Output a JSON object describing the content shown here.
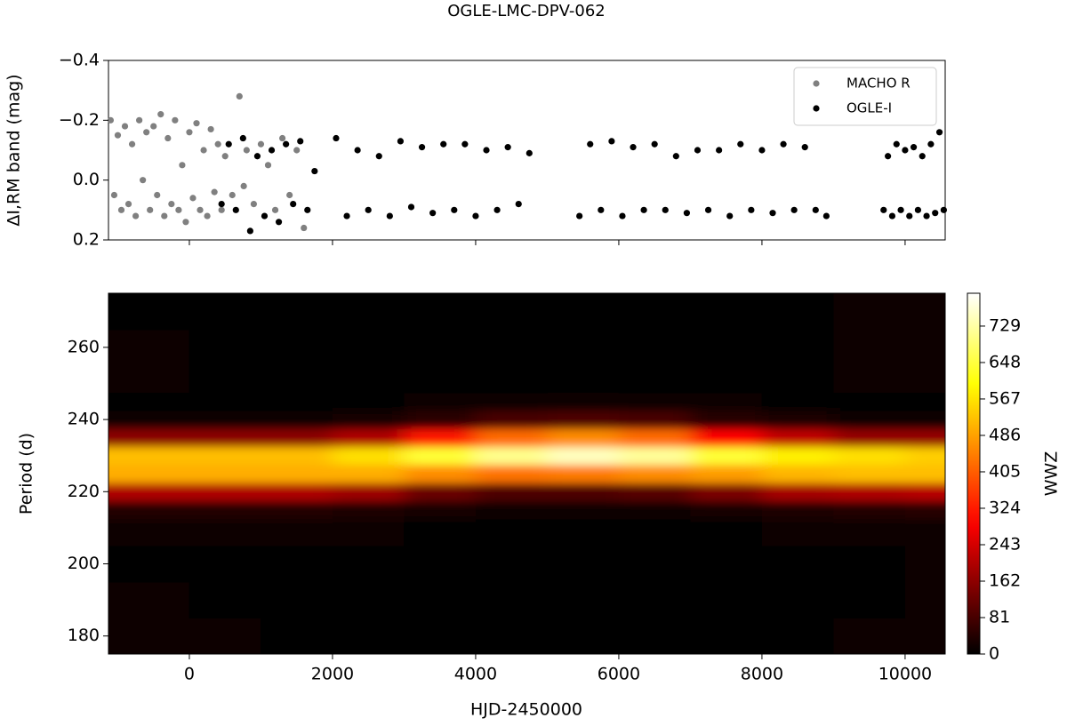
{
  "chart_data": [
    {
      "type": "scatter",
      "title": "OGLE-LMC-DPV-062",
      "ylabel": "ΔI,RM band (mag)",
      "xlim": [
        -1130,
        10560
      ],
      "ylim": [
        0.2,
        -0.4
      ],
      "xticks": [
        0,
        2000,
        4000,
        6000,
        8000,
        10000
      ],
      "yticks": [
        {
          "value": -0.4,
          "label": "−0.4"
        },
        {
          "value": -0.2,
          "label": "−0.2"
        },
        {
          "value": 0.0,
          "label": "0.0"
        },
        0.2
      ],
      "legend": "upper right",
      "series": [
        {
          "name": "MACHO R",
          "color": "#808080",
          "x": [
            -1100,
            -1050,
            -1000,
            -950,
            -900,
            -850,
            -800,
            -750,
            -700,
            -650,
            -600,
            -550,
            -500,
            -450,
            -400,
            -350,
            -300,
            -250,
            -200,
            -150,
            -100,
            -50,
            0,
            50,
            100,
            150,
            200,
            250,
            300,
            350,
            400,
            450,
            500,
            600,
            700,
            760,
            800,
            900,
            1000,
            1100,
            1200,
            1300,
            1400,
            1500,
            1600
          ],
          "values": [
            -0.2,
            0.05,
            -0.15,
            0.1,
            -0.18,
            0.08,
            -0.12,
            0.12,
            -0.2,
            0.0,
            -0.16,
            0.1,
            -0.18,
            0.05,
            -0.22,
            0.12,
            -0.14,
            0.08,
            -0.2,
            0.1,
            -0.05,
            0.14,
            -0.16,
            0.06,
            -0.19,
            0.1,
            -0.1,
            0.12,
            -0.17,
            0.04,
            -0.12,
            0.1,
            -0.08,
            0.05,
            -0.28,
            0.02,
            -0.1,
            0.08,
            -0.12,
            -0.05,
            0.1,
            -0.14,
            0.05,
            -0.1,
            0.16
          ]
        },
        {
          "name": "OGLE-I",
          "color": "#000000",
          "x": [
            450,
            550,
            650,
            750,
            850,
            950,
            1050,
            1150,
            1250,
            1350,
            1450,
            1550,
            1650,
            1750,
            2050,
            2200,
            2350,
            2500,
            2650,
            2800,
            2950,
            3100,
            3250,
            3400,
            3550,
            3700,
            3850,
            4000,
            4150,
            4300,
            4450,
            4600,
            4750,
            5450,
            5600,
            5750,
            5900,
            6050,
            6200,
            6350,
            6500,
            6650,
            6800,
            6950,
            7100,
            7250,
            7400,
            7550,
            7700,
            7850,
            8000,
            8150,
            8300,
            8450,
            8600,
            8750,
            8900,
            9700,
            9760,
            9820,
            9880,
            9940,
            10000,
            10060,
            10120,
            10180,
            10240,
            10300,
            10360,
            10420,
            10480,
            10540
          ],
          "values": [
            0.08,
            -0.12,
            0.1,
            -0.14,
            0.17,
            -0.08,
            0.12,
            -0.1,
            0.14,
            -0.12,
            0.08,
            -0.13,
            0.1,
            -0.03,
            -0.14,
            0.12,
            -0.1,
            0.1,
            -0.08,
            0.12,
            -0.13,
            0.09,
            -0.11,
            0.11,
            -0.12,
            0.1,
            -0.12,
            0.12,
            -0.1,
            0.1,
            -0.11,
            0.08,
            -0.09,
            0.12,
            -0.12,
            0.1,
            -0.13,
            0.12,
            -0.11,
            0.1,
            -0.12,
            0.1,
            -0.08,
            0.11,
            -0.1,
            0.1,
            -0.1,
            0.12,
            -0.12,
            0.1,
            -0.1,
            0.11,
            -0.12,
            0.1,
            -0.11,
            0.1,
            0.12,
            0.1,
            -0.08,
            0.12,
            -0.12,
            0.1,
            -0.1,
            0.12,
            -0.11,
            0.1,
            -0.08,
            0.12,
            -0.12,
            0.11,
            -0.16,
            0.1
          ]
        }
      ]
    },
    {
      "type": "heatmap",
      "xlabel": "HJD-2450000",
      "ylabel": "Period (d)",
      "xlim": [
        -1130,
        10560
      ],
      "ylim": [
        175,
        275
      ],
      "xticks": [
        0,
        2000,
        4000,
        6000,
        8000,
        10000
      ],
      "yticks": [
        180,
        200,
        220,
        240,
        260
      ],
      "colormap": "hot",
      "x": [
        -500,
        500,
        1500,
        2500,
        3500,
        4500,
        5500,
        6500,
        7500,
        8500,
        9500,
        10500
      ],
      "y": [
        180,
        190,
        200,
        210,
        215,
        220,
        225,
        230,
        235,
        240,
        245,
        250,
        260,
        270
      ],
      "z": [
        [
          10,
          8,
          6,
          5,
          5,
          5,
          5,
          5,
          5,
          5,
          8,
          12
        ],
        [
          8,
          6,
          5,
          4,
          4,
          4,
          4,
          4,
          4,
          4,
          6,
          10
        ],
        [
          6,
          5,
          4,
          3,
          3,
          3,
          3,
          3,
          3,
          3,
          5,
          8
        ],
        [
          10,
          8,
          8,
          8,
          6,
          5,
          5,
          5,
          6,
          8,
          10,
          12
        ],
        [
          40,
          40,
          40,
          35,
          25,
          20,
          20,
          20,
          25,
          35,
          40,
          45
        ],
        [
          200,
          200,
          200,
          180,
          120,
          90,
          90,
          100,
          140,
          190,
          200,
          210
        ],
        [
          500,
          500,
          500,
          500,
          460,
          430,
          440,
          460,
          480,
          510,
          520,
          520
        ],
        [
          520,
          520,
          520,
          560,
          640,
          710,
          750,
          720,
          640,
          580,
          560,
          540
        ],
        [
          160,
          160,
          160,
          200,
          320,
          420,
          460,
          420,
          300,
          220,
          170,
          170
        ],
        [
          20,
          20,
          20,
          25,
          50,
          80,
          90,
          80,
          45,
          30,
          20,
          20
        ],
        [
          5,
          5,
          5,
          5,
          8,
          12,
          14,
          12,
          8,
          5,
          5,
          5
        ],
        [
          8,
          6,
          5,
          5,
          4,
          4,
          4,
          4,
          4,
          5,
          8,
          10
        ],
        [
          8,
          6,
          5,
          5,
          4,
          4,
          4,
          4,
          4,
          5,
          8,
          12
        ],
        [
          6,
          6,
          5,
          5,
          4,
          4,
          4,
          4,
          4,
          5,
          10,
          15
        ]
      ],
      "colorbar": {
        "label": "WWZ",
        "clim": [
          0,
          802
        ],
        "ticks": [
          0,
          81,
          162,
          243,
          324,
          405,
          486,
          567,
          648,
          729
        ]
      }
    }
  ]
}
